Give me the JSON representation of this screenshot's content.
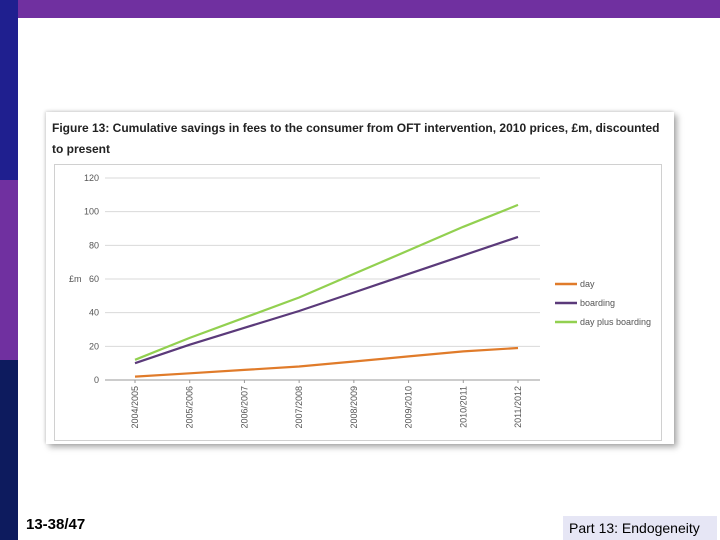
{
  "slide": {
    "page_number": "13-38/47",
    "section": "Part 13: Endogeneity"
  },
  "colors": {
    "top_bar": "#7030a0",
    "left_bar": [
      "#1f1f8f",
      "#7030a0",
      "#0d1b5e"
    ]
  },
  "chart_data": {
    "type": "line",
    "title": "Figure 13: Cumulative savings in fees to the consumer from OFT intervention, 2010 prices, £m, discounted to present",
    "ylabel": "£m",
    "xlabel": "",
    "ylim": [
      0,
      120
    ],
    "yticks": [
      "0",
      "20",
      "40",
      "60",
      "80",
      "100",
      "120"
    ],
    "categories": [
      "2004/2005",
      "2005/2006",
      "2006/2007",
      "2007/2008",
      "2008/2009",
      "2009/2010",
      "2010/2011",
      "2011/2012"
    ],
    "grid": true,
    "legend_position": "right",
    "series": [
      {
        "name": "day",
        "color": "#e07b2a",
        "values": [
          2,
          4,
          6,
          8,
          11,
          14,
          17,
          19
        ]
      },
      {
        "name": "boarding",
        "color": "#5b3a7a",
        "values": [
          10,
          21,
          31,
          41,
          52,
          63,
          74,
          85
        ]
      },
      {
        "name": "day plus boarding",
        "color": "#92d050",
        "values": [
          12,
          25,
          37,
          49,
          63,
          77,
          91,
          104
        ]
      }
    ]
  }
}
